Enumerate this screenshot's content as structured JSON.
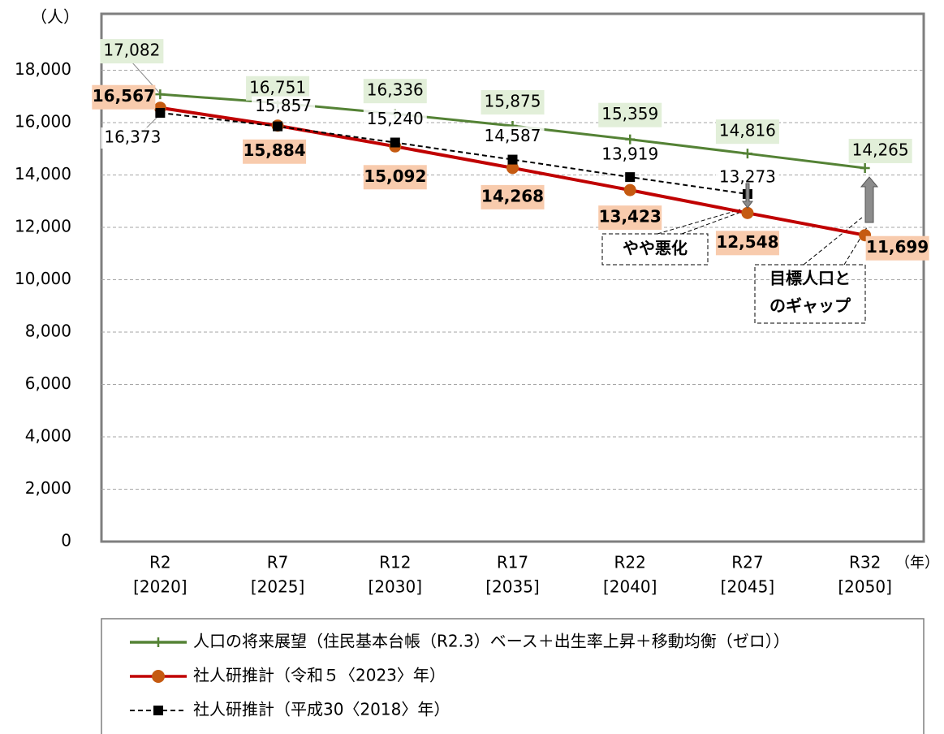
{
  "chart_data": {
    "type": "line",
    "y_label": "（人）",
    "x_label": "（年）",
    "categories": [
      "R2",
      "R7",
      "R12",
      "R17",
      "R22",
      "R27",
      "R32"
    ],
    "category_sublabels": [
      "[2020]",
      "[2025]",
      "[2030]",
      "[2035]",
      "[2040]",
      "[2045]",
      "[2050]"
    ],
    "ylim": [
      0,
      20000
    ],
    "yticks": [
      0,
      {
        "value": 2000,
        "label": "2,000"
      },
      {
        "value": 4000,
        "label": "4,000"
      },
      {
        "value": 6000,
        "label": "6,000"
      },
      {
        "value": 8000,
        "label": "8,000"
      },
      {
        "value": 10000,
        "label": "10,000"
      },
      {
        "value": 12000,
        "label": "12,000"
      },
      {
        "value": 14000,
        "label": "14,000"
      },
      {
        "value": 16000,
        "label": "16,000"
      },
      {
        "value": 18000,
        "label": "18,000"
      }
    ],
    "grid": true,
    "series": [
      {
        "name": "人口の将来展望（住民基本台帳（R2.3）ベース＋出生率上昇＋移動均衡（ゼロ））",
        "color": "#548235",
        "marker": "plus",
        "values": [
          17082,
          16751,
          16336,
          15875,
          15359,
          14816,
          14265
        ],
        "value_labels": [
          "17,082",
          "16,751",
          "16,336",
          "15,875",
          "15,359",
          "14,816",
          "14,265"
        ]
      },
      {
        "name": "社人研推計（令和５〈2023〉年）",
        "color": "#c00000",
        "marker": "circle",
        "marker_color": "#c55a11",
        "values": [
          16567,
          15884,
          15092,
          14268,
          13423,
          12548,
          11699
        ],
        "value_labels": [
          "16,567",
          "15,884",
          "15,092",
          "14,268",
          "13,423",
          "12,548",
          "11,699"
        ]
      },
      {
        "name": "社人研推計（平成30〈2018〉年）",
        "color": "#000000",
        "marker": "square",
        "dashed": true,
        "values": [
          16373,
          15857,
          15240,
          14587,
          13919,
          13273,
          null
        ],
        "value_labels": [
          "16,373",
          "15,857",
          "15,240",
          "14,587",
          "13,919",
          "13,273",
          null
        ]
      }
    ],
    "annotations": [
      [
        "やや悪化"
      ],
      [
        "目標人口と",
        "のギャップ"
      ]
    ]
  }
}
